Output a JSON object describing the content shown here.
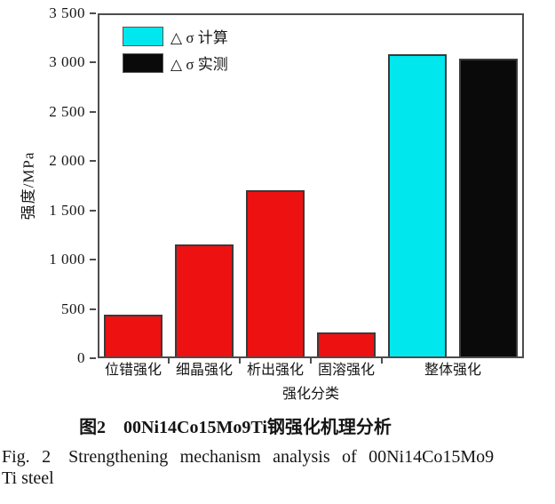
{
  "figure": {
    "caption_zh": "图2　00Ni14Co15Mo9Ti钢强化机理分析",
    "caption_en_line1": "Fig. 2　Strengthening mechanism analysis of 00Ni14Co15Mo9",
    "caption_en_line2": "Ti steel"
  },
  "chart_data": {
    "type": "bar",
    "title": "",
    "xlabel": "强化分类",
    "ylabel": "强度/MPa",
    "ylim": [
      0,
      3500
    ],
    "ytick_interval": 500,
    "ytick_labels": [
      "0",
      "500",
      "1 000",
      "1 500",
      "2 000",
      "2 500",
      "3 000",
      "3 500"
    ],
    "grid": false,
    "legend_position": "top-left",
    "categories": [
      "位错强化",
      "细晶强化",
      "析出强化",
      "固溶强化",
      "整体强化"
    ],
    "bars": [
      {
        "category": "位错强化",
        "series": "component",
        "value": 430
      },
      {
        "category": "细晶强化",
        "series": "component",
        "value": 1150
      },
      {
        "category": "析出强化",
        "series": "component",
        "value": 1700
      },
      {
        "category": "固溶强化",
        "series": "component",
        "value": 250
      },
      {
        "category": "整体强化",
        "series": "calculated",
        "value": 3100
      },
      {
        "category": "整体强化",
        "series": "measured",
        "value": 3050
      }
    ],
    "colors": {
      "component": "#ee1111",
      "calculated": "#00e7ee",
      "measured": "#0a0a0a"
    },
    "legend": [
      {
        "label": "△ σ 计算",
        "series": "calculated"
      },
      {
        "label": "△ σ 实测",
        "series": "measured"
      }
    ]
  }
}
